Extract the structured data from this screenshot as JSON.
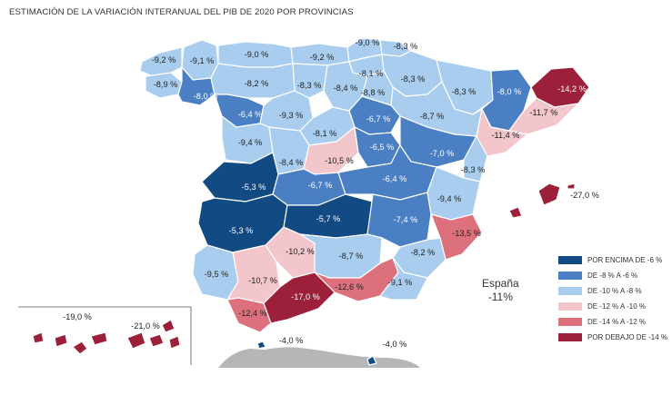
{
  "title": "ESTIMACIÓN DE LA VARIACIÓN INTERANUAL DEL PIB DE 2020 POR PROVINCIAS",
  "colors": {
    "cat1": "#124a83",
    "cat2": "#4a7fc4",
    "cat3": "#a9cdef",
    "cat4": "#f2c6cb",
    "cat5": "#dd707d",
    "cat6": "#9c2039",
    "morocco": "#b4b6b8"
  },
  "legend": [
    {
      "label": "POR ENCIMA DE -6 %",
      "color": "#124a83"
    },
    {
      "label": "DE -8 % A -6 %",
      "color": "#4a7fc4"
    },
    {
      "label": "DE -10 % A -8 %",
      "color": "#a9cdef"
    },
    {
      "label": "DE -12 % A -10 %",
      "color": "#f2c6cb"
    },
    {
      "label": "DE -14 % A -12 %",
      "color": "#dd707d"
    },
    {
      "label": "POR DEBAJO DE -14 %",
      "color": "#9c2039"
    }
  ],
  "spain": {
    "label": "España",
    "value": "-11%"
  },
  "provinces": [
    {
      "id": "lugo",
      "label": "-9,1 %",
      "cat": 3
    },
    {
      "id": "coruna",
      "label": "-9,2 %",
      "cat": 3
    },
    {
      "id": "pontevedra",
      "label": "-8,9 %",
      "cat": 3
    },
    {
      "id": "ourense",
      "label": "-8,0 %",
      "cat": 2
    },
    {
      "id": "asturias",
      "label": "-9,0 %",
      "cat": 3
    },
    {
      "id": "cantabria",
      "label": "-9,2 %",
      "cat": 3
    },
    {
      "id": "bizkaia",
      "label": "-9,0 %",
      "cat": 3
    },
    {
      "id": "gipuzkoa",
      "label": "-8,3 %",
      "cat": 3
    },
    {
      "id": "alava",
      "label": "-8,1 %",
      "cat": 3
    },
    {
      "id": "navarra",
      "label": "-8,3 %",
      "cat": 3
    },
    {
      "id": "leon",
      "label": "-8,2 %",
      "cat": 3
    },
    {
      "id": "palencia",
      "label": "-8,3 %",
      "cat": 3
    },
    {
      "id": "burgos",
      "label": "-8,4 %",
      "cat": 3
    },
    {
      "id": "larioja",
      "label": "-8,8 %",
      "cat": 3
    },
    {
      "id": "huesca",
      "label": "-8,3 %",
      "cat": 3
    },
    {
      "id": "lleida",
      "label": "-8,0 %",
      "cat": 2
    },
    {
      "id": "girona",
      "label": "-14,2 %",
      "cat": 6
    },
    {
      "id": "barcelona",
      "label": "-11,7 %",
      "cat": 4
    },
    {
      "id": "tarragona",
      "label": "-11,4 %",
      "cat": 4
    },
    {
      "id": "zaragoza",
      "label": "-8,7 %",
      "cat": 3
    },
    {
      "id": "soria",
      "label": "-6,7 %",
      "cat": 2
    },
    {
      "id": "zamora",
      "label": "-6,4 %",
      "cat": 2
    },
    {
      "id": "valladolid",
      "label": "-9,3 %",
      "cat": 3
    },
    {
      "id": "segovia",
      "label": "-8,1 %",
      "cat": 3
    },
    {
      "id": "salamanca",
      "label": "-9,4 %",
      "cat": 3
    },
    {
      "id": "avila",
      "label": "-8,4 %",
      "cat": 3
    },
    {
      "id": "madrid",
      "label": "-10,5 %",
      "cat": 4
    },
    {
      "id": "guadalajara",
      "label": "-6,5 %",
      "cat": 2
    },
    {
      "id": "teruel",
      "label": "-7,0 %",
      "cat": 2
    },
    {
      "id": "castellon",
      "label": "-8,3 %",
      "cat": 3
    },
    {
      "id": "caceres",
      "label": "-5,3 %",
      "cat": 1
    },
    {
      "id": "toledo",
      "label": "-6,7 %",
      "cat": 2
    },
    {
      "id": "cuenca",
      "label": "-6,4 %",
      "cat": 2
    },
    {
      "id": "valencia",
      "label": "-9,4 %",
      "cat": 3
    },
    {
      "id": "badajoz",
      "label": "-5,3 %",
      "cat": 1
    },
    {
      "id": "ciudadreal",
      "label": "-5,7 %",
      "cat": 1
    },
    {
      "id": "albacete",
      "label": "-7,4 %",
      "cat": 2
    },
    {
      "id": "alicante",
      "label": "-13,5 %",
      "cat": 5
    },
    {
      "id": "murcia",
      "label": "-8,2 %",
      "cat": 3
    },
    {
      "id": "huelva",
      "label": "-9,5 %",
      "cat": 3
    },
    {
      "id": "sevilla",
      "label": "-10,7 %",
      "cat": 4
    },
    {
      "id": "cordoba",
      "label": "-10,2 %",
      "cat": 4
    },
    {
      "id": "jaen",
      "label": "-8,7 %",
      "cat": 3
    },
    {
      "id": "granada",
      "label": "-12,6 %",
      "cat": 5
    },
    {
      "id": "almeria",
      "label": "-9,1 %",
      "cat": 3
    },
    {
      "id": "cadiz",
      "label": "-12,4 %",
      "cat": 5
    },
    {
      "id": "malaga",
      "label": "-17,0 %",
      "cat": 6
    },
    {
      "id": "baleares",
      "label": "-27,0 %",
      "cat": 6
    },
    {
      "id": "laspalmas",
      "label": "-19,0 %",
      "cat": 6
    },
    {
      "id": "tenerife",
      "label": "-21,0 %",
      "cat": 6
    },
    {
      "id": "ceuta",
      "label": "-4,0 %",
      "cat": 1
    },
    {
      "id": "melilla",
      "label": "-4,0 %",
      "cat": 1
    }
  ]
}
